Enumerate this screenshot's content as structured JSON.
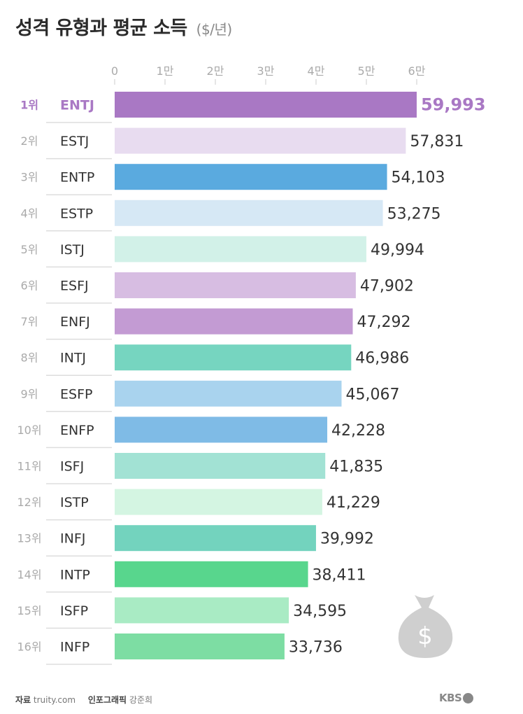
{
  "title": "성격 유형과 평균 소득",
  "unit": "($/년)",
  "footer": {
    "source_label": "자료",
    "source": "truity.com",
    "credit_label": "인포그래픽",
    "credit": "강준희",
    "logo": "KBS"
  },
  "decoration": "money-bag-icon",
  "chart_data": {
    "type": "bar",
    "orientation": "horizontal",
    "title": "성격 유형과 평균 소득 ($/년)",
    "xlabel": "",
    "ylabel": "",
    "xlim": [
      0,
      60000
    ],
    "x_ticks": [
      0,
      10000,
      20000,
      30000,
      40000,
      50000,
      60000
    ],
    "x_tick_labels": [
      "0",
      "1만",
      "2만",
      "3만",
      "4만",
      "5만",
      "6만"
    ],
    "axis_position": "top",
    "grid": false,
    "rank_labels": [
      "1위",
      "2위",
      "3위",
      "4위",
      "5위",
      "6위",
      "7위",
      "8위",
      "9위",
      "10위",
      "11위",
      "12위",
      "13위",
      "14위",
      "15위",
      "16위"
    ],
    "categories": [
      "ENTJ",
      "ESTJ",
      "ENTP",
      "ESTP",
      "ISTJ",
      "ESFJ",
      "ENFJ",
      "INTJ",
      "ESFP",
      "ENFP",
      "ISFJ",
      "ISTP",
      "INFJ",
      "INTP",
      "ISFP",
      "INFP"
    ],
    "values": [
      59993,
      57831,
      54103,
      53275,
      49994,
      47902,
      47292,
      46986,
      45067,
      42228,
      41835,
      41229,
      39992,
      38411,
      34595,
      33736
    ],
    "value_labels": [
      "59,993",
      "57,831",
      "54,103",
      "53,275",
      "49,994",
      "47,902",
      "47,292",
      "46,986",
      "45,067",
      "42,228",
      "41,835",
      "41,229",
      "39,992",
      "38,411",
      "34,595",
      "33,736"
    ],
    "colors": [
      "#a978c4",
      "#e8dcf0",
      "#5aaadf",
      "#d6e8f5",
      "#d2f1e8",
      "#d7bde2",
      "#c39bd3",
      "#76d5c0",
      "#a9d3ee",
      "#7fbbe6",
      "#a2e2d4",
      "#d4f5e2",
      "#73d3be",
      "#58d68d",
      "#a9ebc4",
      "#7ddda3"
    ],
    "highlight_index": 0,
    "highlight_color": "#a978c4"
  }
}
